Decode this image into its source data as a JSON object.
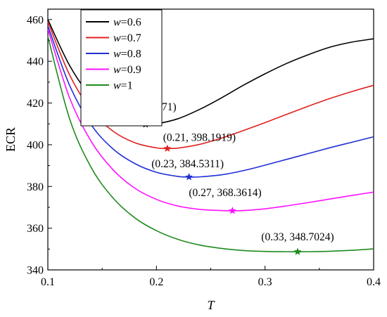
{
  "chart_data": {
    "type": "line",
    "xlabel": "T",
    "ylabel": "ECR",
    "xlim": [
      0.1,
      0.4
    ],
    "ylim": [
      340,
      465
    ],
    "xticks": [
      0.1,
      0.2,
      0.3,
      0.4
    ],
    "xtick_labels": [
      "0.1",
      "0.2",
      "0.3",
      "0.4"
    ],
    "yticks": [
      340,
      360,
      380,
      400,
      420,
      440,
      460
    ],
    "ytick_labels": [
      "340",
      "360",
      "380",
      "400",
      "420",
      "440",
      "460"
    ],
    "grid": false,
    "legend": {
      "placement": "top-left",
      "entries": [
        {
          "var": "w",
          "value": "=0.6"
        },
        {
          "var": "w",
          "value": "=0.7"
        },
        {
          "var": "w",
          "value": "=0.8"
        },
        {
          "var": "w",
          "value": "=0.9"
        },
        {
          "var": "w",
          "value": "=1"
        }
      ]
    },
    "series": [
      {
        "name": "w=0.6",
        "color": "#000000",
        "x": [
          0.1,
          0.12,
          0.14,
          0.16,
          0.18,
          0.19,
          0.2,
          0.22,
          0.24,
          0.26,
          0.28,
          0.3,
          0.32,
          0.34,
          0.36,
          0.38,
          0.4
        ],
        "y": [
          460,
          438,
          423,
          414.5,
          410.3,
          409.771,
          410.0,
          412.5,
          417.0,
          422.5,
          428.5,
          434.0,
          439.0,
          443.2,
          446.8,
          449.2,
          450.8
        ],
        "min_point": {
          "x": 0.19,
          "y": 409.771,
          "label": "(0.19, 409.771)"
        }
      },
      {
        "name": "w=0.7",
        "color": "#e02020",
        "x": [
          0.1,
          0.12,
          0.14,
          0.16,
          0.18,
          0.2,
          0.21,
          0.22,
          0.24,
          0.26,
          0.28,
          0.3,
          0.32,
          0.34,
          0.36,
          0.38,
          0.4
        ],
        "y": [
          459,
          433.5,
          416.5,
          406.5,
          401.0,
          398.5,
          398.1919,
          398.4,
          400.2,
          403.2,
          406.8,
          410.6,
          414.6,
          418.5,
          422.2,
          425.5,
          428.5
        ],
        "min_point": {
          "x": 0.21,
          "y": 398.1919,
          "label": "(0.21, 398.1919)"
        }
      },
      {
        "name": "w=0.8",
        "color": "#1f2fd6",
        "x": [
          0.1,
          0.12,
          0.14,
          0.16,
          0.18,
          0.2,
          0.22,
          0.23,
          0.24,
          0.26,
          0.28,
          0.3,
          0.32,
          0.34,
          0.36,
          0.38,
          0.4
        ],
        "y": [
          457,
          428.5,
          409.5,
          398.0,
          391.0,
          386.8,
          384.8,
          384.5311,
          384.6,
          385.6,
          387.6,
          390.2,
          393.0,
          395.8,
          398.6,
          401.2,
          403.8
        ],
        "min_point": {
          "x": 0.23,
          "y": 384.5311,
          "label": "(0.23, 384.5311)"
        }
      },
      {
        "name": "w=0.9",
        "color": "#ff10ff",
        "x": [
          0.1,
          0.12,
          0.14,
          0.16,
          0.18,
          0.2,
          0.22,
          0.24,
          0.26,
          0.27,
          0.28,
          0.3,
          0.32,
          0.34,
          0.36,
          0.38,
          0.4
        ],
        "y": [
          455.5,
          422.5,
          401.5,
          388.0,
          379.2,
          373.8,
          370.6,
          369.0,
          368.45,
          368.3614,
          368.45,
          369.3,
          370.7,
          372.3,
          374.0,
          375.7,
          377.3
        ],
        "min_point": {
          "x": 0.27,
          "y": 368.3614,
          "label": "(0.27, 368.3614)"
        }
      },
      {
        "name": "w=1",
        "color": "#1f8a1f",
        "x": [
          0.1,
          0.12,
          0.14,
          0.16,
          0.18,
          0.2,
          0.22,
          0.24,
          0.26,
          0.28,
          0.3,
          0.32,
          0.33,
          0.34,
          0.36,
          0.38,
          0.4
        ],
        "y": [
          452,
          412.5,
          389.0,
          374.5,
          365.0,
          358.8,
          354.6,
          351.9,
          350.3,
          349.3,
          348.85,
          348.72,
          348.7024,
          348.72,
          348.95,
          349.4,
          350.1
        ],
        "min_point": {
          "x": 0.33,
          "y": 348.7024,
          "label": "(0.33, 348.7024)"
        }
      }
    ]
  }
}
